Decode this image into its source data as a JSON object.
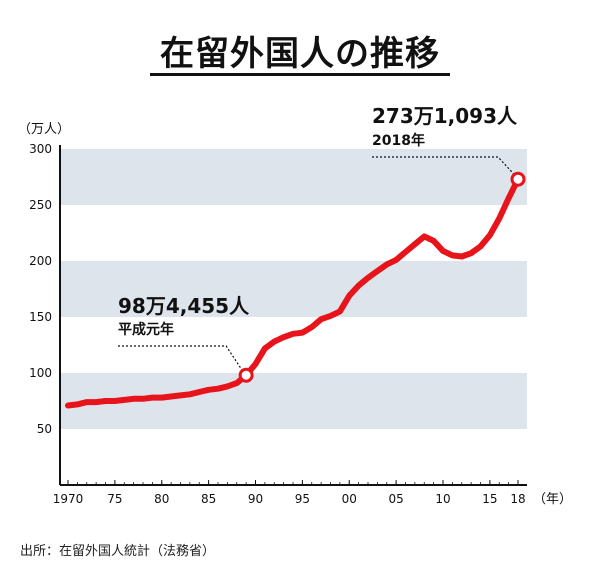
{
  "title": "在留外国人の推移",
  "source": "出所：在留外国人統計（法務省）",
  "chart_data": {
    "type": "line",
    "title": "在留外国人の推移",
    "ylabel": "（万人）",
    "xunit": "（年）",
    "ylim": [
      0,
      300
    ],
    "yticks": [
      50,
      100,
      150,
      200,
      250,
      300
    ],
    "xlim": [
      1970,
      2018
    ],
    "xticks": [
      {
        "x": 1970,
        "label": "1970"
      },
      {
        "x": 1975,
        "label": "75"
      },
      {
        "x": 1980,
        "label": "80"
      },
      {
        "x": 1985,
        "label": "85"
      },
      {
        "x": 1990,
        "label": "90"
      },
      {
        "x": 1995,
        "label": "95"
      },
      {
        "x": 2000,
        "label": "00"
      },
      {
        "x": 2005,
        "label": "05"
      },
      {
        "x": 2010,
        "label": "10"
      },
      {
        "x": 2015,
        "label": "15"
      },
      {
        "x": 2018,
        "label": "18"
      }
    ],
    "grid_bands": true,
    "line_color": "#e8141b",
    "band_color": "#dde4ec",
    "series": [
      {
        "name": "",
        "x": [
          1970,
          1971,
          1972,
          1973,
          1974,
          1975,
          1976,
          1977,
          1978,
          1979,
          1980,
          1981,
          1982,
          1983,
          1984,
          1985,
          1986,
          1987,
          1988,
          1989,
          1990,
          1991,
          1992,
          1993,
          1994,
          1995,
          1996,
          1997,
          1998,
          1999,
          2000,
          2001,
          2002,
          2003,
          2004,
          2005,
          2006,
          2007,
          2008,
          2009,
          2010,
          2011,
          2012,
          2013,
          2014,
          2015,
          2016,
          2017,
          2018
        ],
        "values": [
          71,
          72,
          74,
          74,
          75,
          75,
          76,
          77,
          77,
          78,
          78,
          79,
          80,
          81,
          83,
          85,
          86,
          88,
          91,
          98,
          108,
          122,
          128,
          132,
          135,
          136,
          141,
          148,
          151,
          155,
          169,
          178,
          185,
          191,
          197,
          201,
          208,
          215,
          222,
          218,
          209,
          205,
          204,
          207,
          213,
          223,
          238,
          256,
          273
        ]
      }
    ],
    "annotations": [
      {
        "x": 1989,
        "y": 98,
        "text": "98万4,455人",
        "subtext": "平成元年"
      },
      {
        "x": 2018,
        "y": 273,
        "text": "273万1,093人",
        "subtext": "2018年"
      }
    ]
  }
}
